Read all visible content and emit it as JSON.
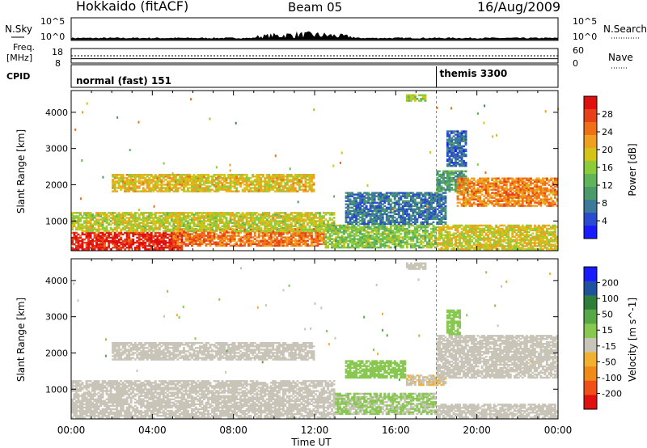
{
  "header": {
    "station": "Hokkaido (fitACF)",
    "beam": "Beam 05",
    "date": "16/Aug/2009"
  },
  "nsky_panel": {
    "left_label": "N.Sky",
    "right_label": "N.Search",
    "ticks_left": [
      "10^5",
      "10^0"
    ],
    "ticks_right": [
      "10^5",
      "10^0"
    ]
  },
  "freq_panel": {
    "left_label_line1": "Freq.",
    "left_label_line2": "[MHz]",
    "ticks_left": [
      "18",
      "8"
    ],
    "right_label": "Nave",
    "ticks_right": [
      "60",
      "0"
    ],
    "freq_value_mhz": 11,
    "nave_value": 30
  },
  "cpid_panel": {
    "label": "CPID",
    "modes": [
      {
        "name": "normal (fast) 151",
        "start_hour": 0
      },
      {
        "name": "themis 3300",
        "start_hour": 18
      }
    ]
  },
  "chart_data": [
    {
      "type": "heatmap",
      "title": "",
      "xlabel": "Time UT",
      "ylabel": "Slant Range [km]",
      "xlim": [
        0,
        24
      ],
      "ylim": [
        180,
        4600
      ],
      "x_ticks": [
        "00:00",
        "04:00",
        "08:00",
        "12:00",
        "16:00",
        "20:00",
        "00:00"
      ],
      "y_ticks": [
        1000,
        2000,
        3000,
        4000
      ],
      "colorbar": {
        "label": "Power [dB]",
        "ticks": [
          "4",
          "8",
          "12",
          "16",
          "20",
          "24",
          "28"
        ],
        "range": [
          0,
          30
        ]
      },
      "regions": [
        {
          "t0": 0.0,
          "t1": 5.5,
          "r0": 200,
          "r1": 700,
          "level": 29
        },
        {
          "t0": 5.0,
          "t1": 12.5,
          "r0": 300,
          "r1": 800,
          "level": 24
        },
        {
          "t0": 0.0,
          "t1": 13.0,
          "r0": 700,
          "r1": 1250,
          "level": 17
        },
        {
          "t0": 12.5,
          "t1": 18.0,
          "r0": 250,
          "r1": 900,
          "level": 14
        },
        {
          "t0": 13.5,
          "t1": 18.5,
          "r0": 900,
          "r1": 1800,
          "level": 6
        },
        {
          "t0": 18.0,
          "t1": 24.0,
          "r0": 200,
          "r1": 900,
          "level": 18
        },
        {
          "t0": 18.0,
          "t1": 19.5,
          "r0": 1800,
          "r1": 2400,
          "level": 10
        },
        {
          "t0": 19.0,
          "t1": 24.0,
          "r0": 1400,
          "r1": 2200,
          "level": 23
        },
        {
          "t0": 2.0,
          "t1": 12.0,
          "r0": 1800,
          "r1": 2300,
          "level": 19
        },
        {
          "t0": 18.5,
          "t1": 19.5,
          "r0": 2500,
          "r1": 3500,
          "level": 5
        },
        {
          "t0": 16.5,
          "t1": 17.5,
          "r0": 4300,
          "r1": 4500,
          "level": 15
        }
      ]
    },
    {
      "type": "heatmap",
      "title": "",
      "xlabel": "Time UT",
      "ylabel": "Slant Range [km]",
      "xlim": [
        0,
        24
      ],
      "ylim": [
        180,
        4600
      ],
      "x_ticks": [
        "00:00",
        "04:00",
        "08:00",
        "12:00",
        "16:00",
        "20:00",
        "00:00"
      ],
      "y_ticks": [
        1000,
        2000,
        3000,
        4000
      ],
      "colorbar": {
        "label": "Velocity [m s^-1]",
        "ticks": [
          "200",
          "100",
          "50",
          "15",
          "-15",
          "-50",
          "-100",
          "-200"
        ],
        "range": [
          -250,
          250
        ]
      },
      "regions": [
        {
          "t0": 0.0,
          "t1": 13.0,
          "r0": 200,
          "r1": 1250,
          "level": 0
        },
        {
          "t0": 2.0,
          "t1": 12.0,
          "r0": 1800,
          "r1": 2300,
          "level": 0
        },
        {
          "t0": 13.5,
          "t1": 16.5,
          "r0": 1300,
          "r1": 1800,
          "level": 60
        },
        {
          "t0": 13.0,
          "t1": 18.0,
          "r0": 300,
          "r1": 900,
          "level": 30
        },
        {
          "t0": 16.5,
          "t1": 18.5,
          "r0": 1100,
          "r1": 1400,
          "level": -70
        },
        {
          "t0": 18.0,
          "t1": 24.0,
          "r0": 200,
          "r1": 600,
          "level": -60
        },
        {
          "t0": 18.0,
          "t1": 24.0,
          "r0": 1300,
          "r1": 2500,
          "level": 0
        },
        {
          "t0": 18.5,
          "t1": 19.2,
          "r0": 2500,
          "r1": 3200,
          "level": 60
        },
        {
          "t0": 16.5,
          "t1": 17.5,
          "r0": 4300,
          "r1": 4500,
          "level": 0
        }
      ]
    }
  ]
}
